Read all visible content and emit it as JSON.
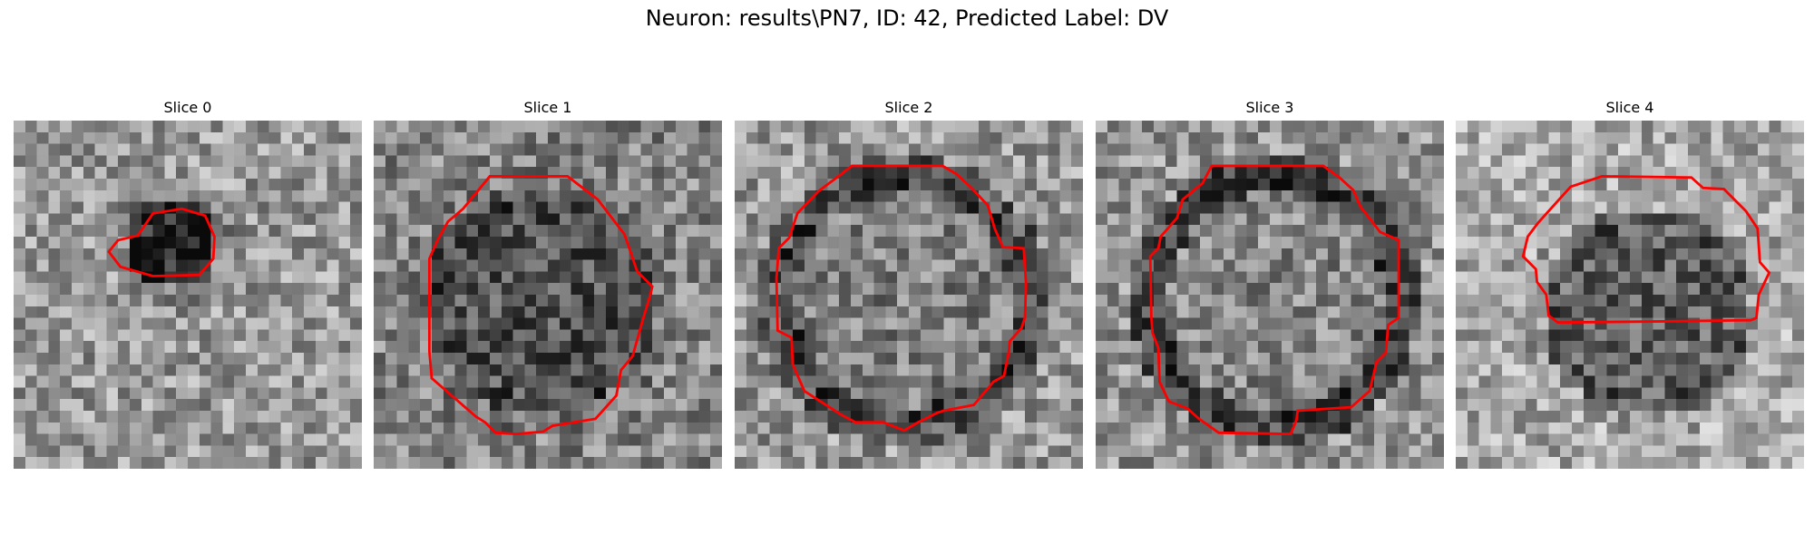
{
  "figure": {
    "title": "Neuron: results\\PN7, ID: 42, Predicted Label: DV"
  },
  "colors": {
    "contour": "#ff0000",
    "background": "#ffffff"
  },
  "panels": [
    {
      "title": "Slice 0"
    },
    {
      "title": "Slice 1"
    },
    {
      "title": "Slice 2"
    },
    {
      "title": "Slice 3"
    },
    {
      "title": "Slice 4"
    }
  ]
}
